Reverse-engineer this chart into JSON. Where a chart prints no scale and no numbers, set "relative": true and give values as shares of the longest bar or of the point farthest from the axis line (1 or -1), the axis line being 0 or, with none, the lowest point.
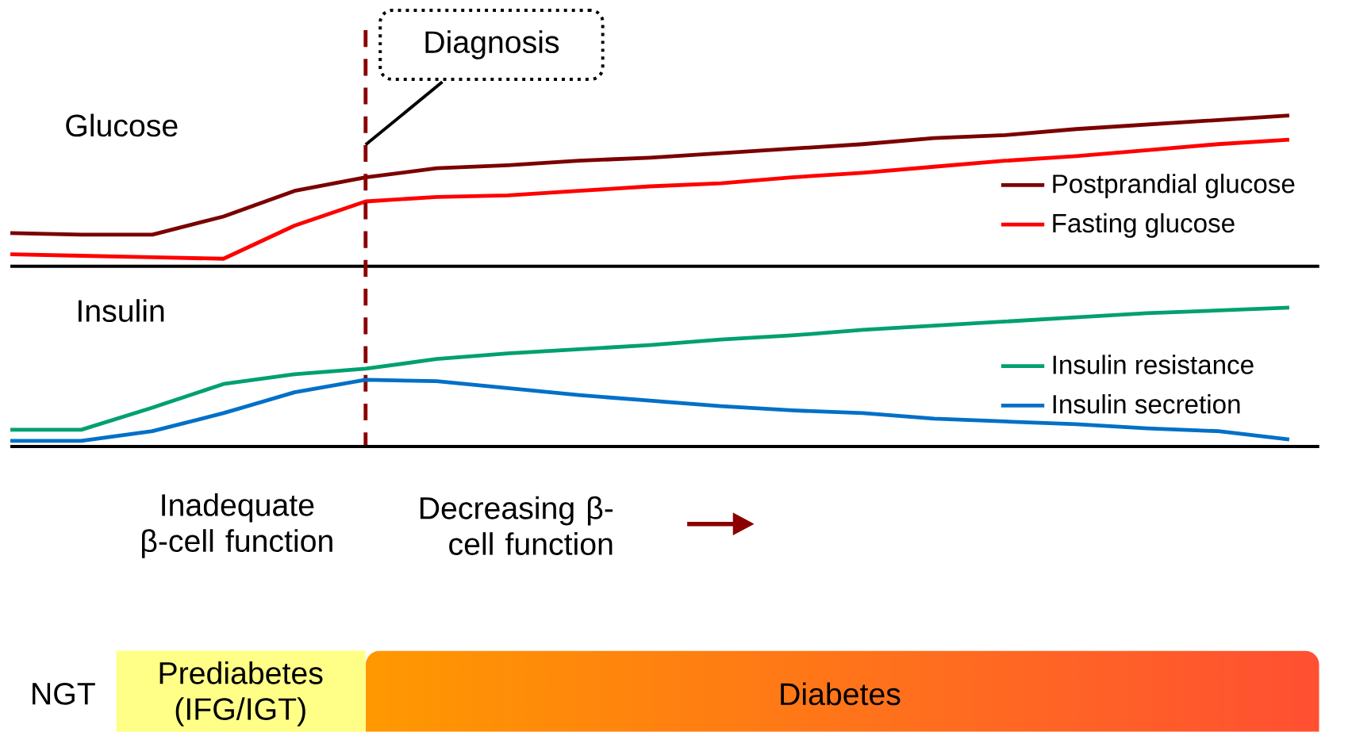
{
  "chart_data": [
    {
      "type": "line",
      "title": "Glucose",
      "relative": true,
      "legend": "right",
      "categories": [
        null,
        null,
        null,
        null,
        null,
        null,
        null,
        null,
        null,
        null,
        null,
        null,
        null,
        null,
        null,
        null,
        null,
        null,
        null
      ],
      "series": [
        {
          "name": "Postprandial glucose",
          "color": "#7b0000",
          "values": [
            0.22,
            0.21,
            0.21,
            0.33,
            0.5,
            0.59,
            0.65,
            0.67,
            0.7,
            0.72,
            0.75,
            0.78,
            0.81,
            0.85,
            0.87,
            0.91,
            0.94,
            0.97,
            1
          ]
        },
        {
          "name": "Fasting glucose",
          "color": "#ff0000",
          "values": [
            0.08,
            0.07,
            0.06,
            0.05,
            0.27,
            0.43,
            0.46,
            0.47,
            0.5,
            0.53,
            0.55,
            0.59,
            0.62,
            0.66,
            0.7,
            0.73,
            0.77,
            0.81,
            0.84
          ]
        }
      ],
      "annotations": [
        "Diagnosis"
      ]
    },
    {
      "type": "line",
      "title": "Insulin",
      "relative": true,
      "legend": "right",
      "categories": [
        null,
        null,
        null,
        null,
        null,
        null,
        null,
        null,
        null,
        null,
        null,
        null,
        null,
        null,
        null,
        null,
        null,
        null,
        null
      ],
      "series": [
        {
          "name": "Insulin resistance",
          "color": "#00a070",
          "values": [
            0.12,
            0.12,
            0.28,
            0.45,
            0.52,
            0.56,
            0.63,
            0.67,
            0.7,
            0.73,
            0.77,
            0.8,
            0.84,
            0.87,
            0.9,
            0.93,
            0.96,
            0.98,
            1
          ]
        },
        {
          "name": "Insulin secretion",
          "color": "#0070c8",
          "values": [
            0.04,
            0.04,
            0.11,
            0.24,
            0.39,
            0.48,
            0.47,
            0.42,
            0.37,
            0.33,
            0.29,
            0.26,
            0.24,
            0.2,
            0.18,
            0.16,
            0.13,
            0.11,
            0.05
          ]
        }
      ],
      "annotations": [
        "Inadequate β-cell function",
        "Decreasing β-cell function"
      ]
    },
    {
      "type": "other",
      "annotations": [
        "NGT",
        "Prediabetes (IFG/IGT)",
        "Diabetes"
      ]
    }
  ]
}
